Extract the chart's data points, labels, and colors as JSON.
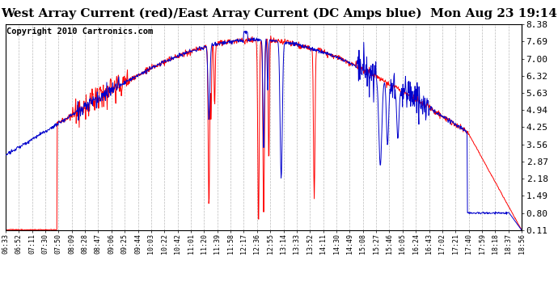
{
  "title": "West Array Current (red)/East Array Current (DC Amps blue)  Mon Aug 23 19:14",
  "copyright": "Copyright 2010 Cartronics.com",
  "ylabel_right": [
    "8.38",
    "7.69",
    "7.00",
    "6.32",
    "5.63",
    "4.94",
    "4.25",
    "3.56",
    "2.87",
    "2.18",
    "1.49",
    "0.80",
    "0.11"
  ],
  "ylim_min": 0.11,
  "ylim_max": 8.38,
  "x_labels": [
    "06:33",
    "06:52",
    "07:11",
    "07:30",
    "07:50",
    "08:09",
    "08:28",
    "08:47",
    "09:06",
    "09:25",
    "09:44",
    "10:03",
    "10:22",
    "10:42",
    "11:01",
    "11:20",
    "11:39",
    "11:58",
    "12:17",
    "12:36",
    "12:55",
    "13:14",
    "13:33",
    "13:52",
    "14:11",
    "14:30",
    "14:49",
    "15:08",
    "15:27",
    "15:46",
    "16:05",
    "16:24",
    "16:43",
    "17:02",
    "17:21",
    "17:40",
    "17:59",
    "18:18",
    "18:37",
    "18:56"
  ],
  "background_color": "#ffffff",
  "grid_color": "#bbbbbb",
  "red_color": "#ff0000",
  "blue_color": "#0000cc",
  "title_fontsize": 11,
  "copyright_fontsize": 7.5
}
